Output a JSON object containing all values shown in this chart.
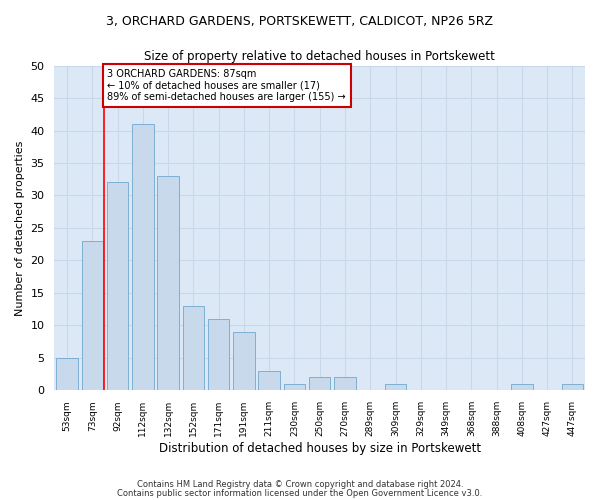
{
  "title": "3, ORCHARD GARDENS, PORTSKEWETT, CALDICOT, NP26 5RZ",
  "subtitle": "Size of property relative to detached houses in Portskewett",
  "xlabel": "Distribution of detached houses by size in Portskewett",
  "ylabel": "Number of detached properties",
  "categories": [
    "53sqm",
    "73sqm",
    "92sqm",
    "112sqm",
    "132sqm",
    "152sqm",
    "171sqm",
    "191sqm",
    "211sqm",
    "230sqm",
    "250sqm",
    "270sqm",
    "289sqm",
    "309sqm",
    "329sqm",
    "349sqm",
    "368sqm",
    "388sqm",
    "408sqm",
    "427sqm",
    "447sqm"
  ],
  "values": [
    5,
    23,
    32,
    41,
    33,
    13,
    11,
    9,
    3,
    1,
    2,
    2,
    0,
    1,
    0,
    0,
    0,
    0,
    1,
    0,
    1
  ],
  "bar_color": "#c9d9ec",
  "bar_edge_color": "#6fa8d0",
  "grid_color": "#c8d8e8",
  "background_color": "#dce8f5",
  "ylim": [
    0,
    50
  ],
  "yticks": [
    0,
    5,
    10,
    15,
    20,
    25,
    30,
    35,
    40,
    45,
    50
  ],
  "red_line_x": 1.45,
  "annotation_text": "3 ORCHARD GARDENS: 87sqm\n← 10% of detached houses are smaller (17)\n89% of semi-detached houses are larger (155) →",
  "annotation_box_color": "#ffffff",
  "annotation_box_edge_color": "#cc0000",
  "footnote1": "Contains HM Land Registry data © Crown copyright and database right 2024.",
  "footnote2": "Contains public sector information licensed under the Open Government Licence v3.0."
}
